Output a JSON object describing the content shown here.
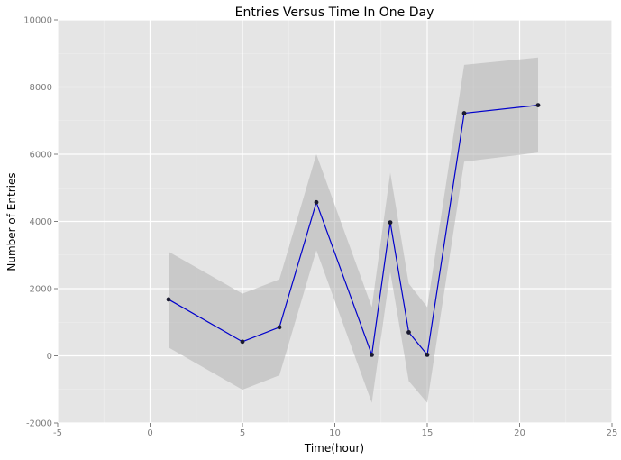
{
  "chart_data": {
    "type": "line",
    "title": "Entries Versus Time In One Day",
    "xlabel": "Time(hour)",
    "ylabel": "Number of Entries",
    "xlim": [
      -5,
      25
    ],
    "ylim": [
      -2000,
      10000
    ],
    "x_ticks": [
      -5,
      0,
      5,
      10,
      15,
      20,
      25
    ],
    "y_ticks": [
      -2000,
      0,
      2000,
      4000,
      6000,
      8000,
      10000
    ],
    "grid": true,
    "legend": "none",
    "series": [
      {
        "x": [
          1,
          5,
          7,
          9,
          12,
          13,
          14,
          15,
          17,
          21
        ],
        "y": [
          1680,
          420,
          850,
          4570,
          30,
          3970,
          700,
          30,
          7220,
          7460
        ],
        "band_upper": [
          3100,
          1850,
          2280,
          6000,
          1450,
          5450,
          2150,
          1450,
          8660,
          8880
        ],
        "band_lower": [
          250,
          -1010,
          -580,
          3140,
          -1400,
          2500,
          -750,
          -1400,
          5780,
          6050
        ]
      }
    ],
    "colors": {
      "panel_bg": "#e5e5e5",
      "grid_major": "#ffffff",
      "grid_minor": "#f0f0f0",
      "line": "#0000cc",
      "point": "#1a1a2e",
      "band": "#b3b3b3",
      "tick_text": "#7f7f7f"
    }
  }
}
